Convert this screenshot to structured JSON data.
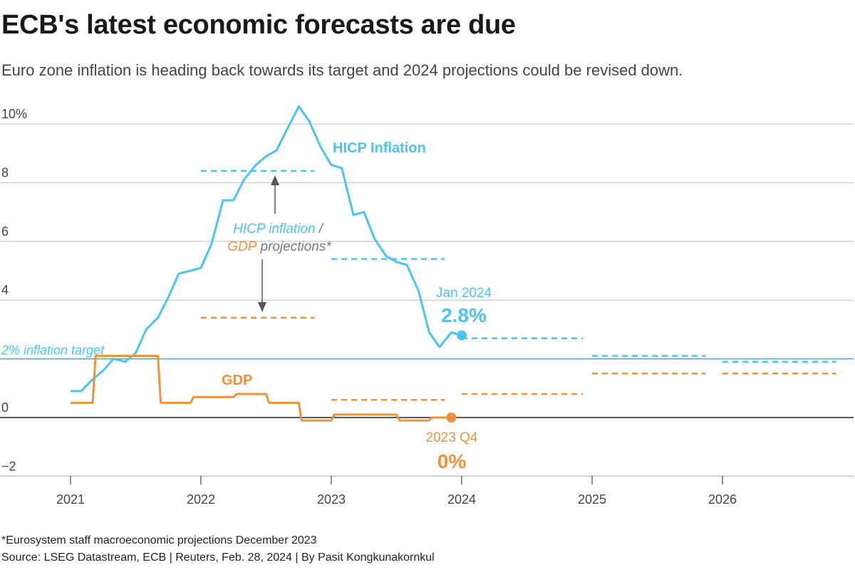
{
  "header": {
    "title": "ECB's latest economic forecasts are due",
    "subtitle": "Euro zone inflation is heading back towards its target and 2024 projections could be revised down."
  },
  "footer": {
    "footnote": "*Eurosystem staff macroeconomic projections December 2023",
    "source": "Source: LSEG Datastream, ECB | Reuters, Feb. 28, 2024 | By Pasit Kongkunakornkul"
  },
  "colors": {
    "inflation": "#4cc3f5",
    "gdp": "#f0923a",
    "target_line": "#1fb0e6",
    "grid": "#bfbfbf",
    "zero_line": "#222222",
    "arrow": "#555555"
  },
  "chart_data": {
    "type": "line",
    "ylim": [
      -2,
      10
    ],
    "y_ticks": [
      {
        "value": 10,
        "label": "10%"
      },
      {
        "value": 8,
        "label": "8"
      },
      {
        "value": 6,
        "label": "6"
      },
      {
        "value": 4,
        "label": "4"
      },
      {
        "value": 0,
        "label": "0"
      },
      {
        "value": -2,
        "label": "−2"
      }
    ],
    "x_ticks": [
      {
        "value": 2021,
        "label": "2021"
      },
      {
        "value": 2022,
        "label": "2022"
      },
      {
        "value": 2023,
        "label": "2023"
      },
      {
        "value": 2024,
        "label": "2024"
      },
      {
        "value": 2025,
        "label": "2025"
      },
      {
        "value": 2026,
        "label": "2026"
      }
    ],
    "series": [
      {
        "name": "HICP Inflation",
        "color_key": "inflation",
        "points": [
          [
            2021.0,
            0.9
          ],
          [
            2021.08,
            0.9
          ],
          [
            2021.17,
            1.3
          ],
          [
            2021.25,
            1.6
          ],
          [
            2021.33,
            2.0
          ],
          [
            2021.42,
            1.9
          ],
          [
            2021.5,
            2.2
          ],
          [
            2021.58,
            3.0
          ],
          [
            2021.67,
            3.4
          ],
          [
            2021.75,
            4.1
          ],
          [
            2021.83,
            4.9
          ],
          [
            2021.92,
            5.0
          ],
          [
            2022.0,
            5.1
          ],
          [
            2022.08,
            5.9
          ],
          [
            2022.17,
            7.4
          ],
          [
            2022.25,
            7.4
          ],
          [
            2022.33,
            8.1
          ],
          [
            2022.42,
            8.6
          ],
          [
            2022.5,
            8.9
          ],
          [
            2022.58,
            9.1
          ],
          [
            2022.67,
            9.9
          ],
          [
            2022.75,
            10.6
          ],
          [
            2022.83,
            10.1
          ],
          [
            2022.92,
            9.2
          ],
          [
            2023.0,
            8.6
          ],
          [
            2023.08,
            8.5
          ],
          [
            2023.17,
            6.9
          ],
          [
            2023.25,
            7.0
          ],
          [
            2023.33,
            6.1
          ],
          [
            2023.42,
            5.5
          ],
          [
            2023.5,
            5.3
          ],
          [
            2023.58,
            5.2
          ],
          [
            2023.67,
            4.3
          ],
          [
            2023.75,
            2.9
          ],
          [
            2023.83,
            2.4
          ],
          [
            2023.92,
            2.9
          ],
          [
            2024.0,
            2.8
          ]
        ]
      },
      {
        "name": "GDP",
        "color_key": "gdp",
        "steps": [
          [
            2021.0,
            0.5
          ],
          [
            2021.17,
            2.1
          ],
          [
            2021.67,
            0.5
          ],
          [
            2021.92,
            0.7
          ],
          [
            2022.25,
            0.8
          ],
          [
            2022.5,
            0.5
          ],
          [
            2022.75,
            -0.1
          ],
          [
            2023.0,
            0.1
          ],
          [
            2023.5,
            -0.1
          ],
          [
            2023.75,
            0.0
          ]
        ],
        "end_x": 2023.92
      }
    ],
    "projections": [
      {
        "series": "inflation",
        "x": [
          2022.0,
          2022.87
        ],
        "value": 8.4
      },
      {
        "series": "gdp",
        "x": [
          2022.0,
          2022.87
        ],
        "value": 3.4
      },
      {
        "series": "inflation",
        "x": [
          2023.0,
          2023.87
        ],
        "value": 5.4
      },
      {
        "series": "gdp",
        "x": [
          2023.0,
          2023.87
        ],
        "value": 0.6
      },
      {
        "series": "inflation",
        "x": [
          2024.0,
          2024.93
        ],
        "value": 2.7
      },
      {
        "series": "gdp",
        "x": [
          2024.0,
          2024.93
        ],
        "value": 0.8
      },
      {
        "series": "inflation",
        "x": [
          2025.0,
          2025.87
        ],
        "value": 2.1
      },
      {
        "series": "gdp",
        "x": [
          2025.0,
          2025.87
        ],
        "value": 1.5
      },
      {
        "series": "inflation",
        "x": [
          2026.0,
          2026.87
        ],
        "value": 1.9
      },
      {
        "series": "gdp",
        "x": [
          2026.0,
          2026.87
        ],
        "value": 1.5
      }
    ],
    "target": {
      "value": 2,
      "label": "2% inflation target"
    },
    "annotations": {
      "inflation_label": "HICP Inflation",
      "gdp_label": "GDP",
      "proj_label_inflation": "HICP inflation",
      "proj_label_slash": "/",
      "proj_label_gdp": "GDP",
      "proj_label_rest": "projections*",
      "last_inflation": {
        "x": 2024.0,
        "value": 2.8,
        "period": "Jan 2024",
        "label": "2.8%"
      },
      "last_gdp": {
        "x": 2023.92,
        "value": 0.0,
        "period": "2023 Q4",
        "label": "0%"
      }
    }
  }
}
